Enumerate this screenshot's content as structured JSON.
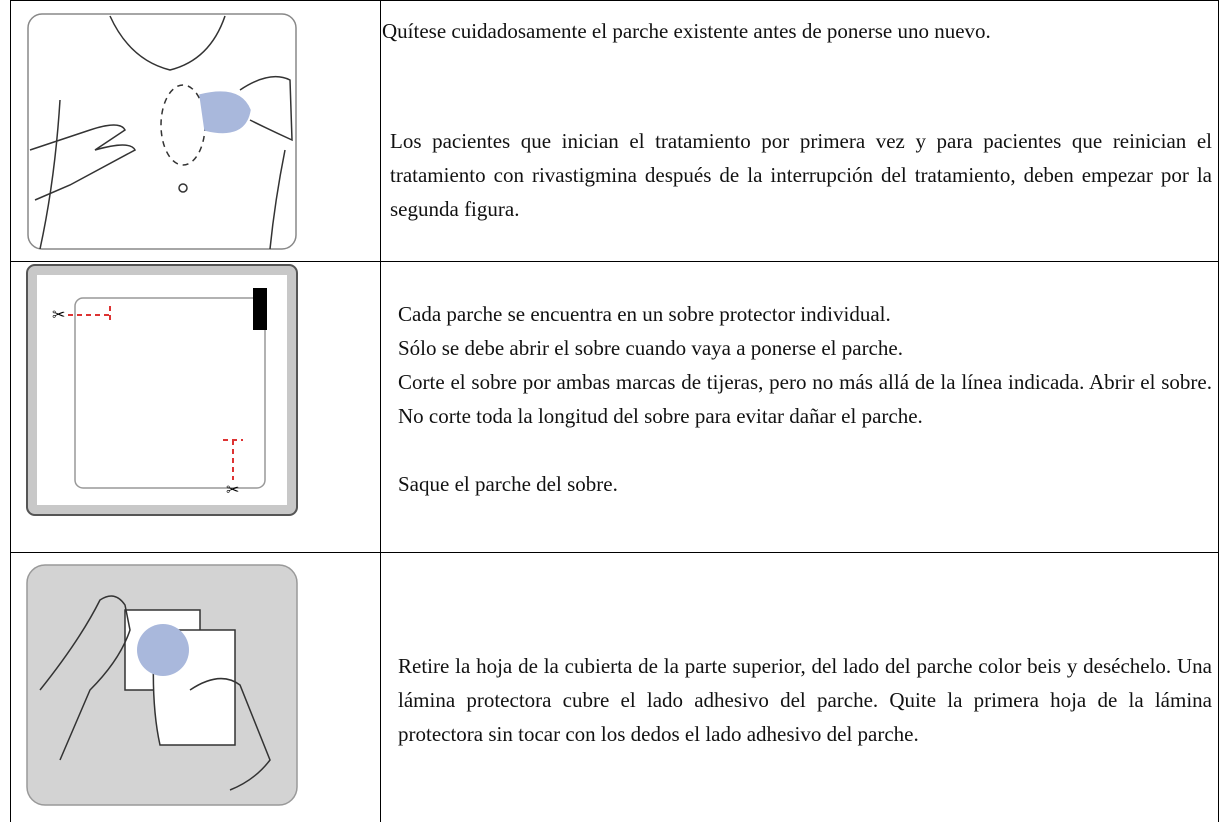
{
  "table": {
    "rows": [
      {
        "paragraphs": [
          "Quítese cuidadosamente el parche existente antes de ponerse uno nuevo.",
          "Los pacientes que inician el tratamiento por primera vez y para pacientes que reinician el tratamiento con rivastigmina después de la interrupción del tratamiento, deben empezar por la segunda figura."
        ]
      },
      {
        "paragraphs": [
          "Cada parche se encuentra en un sobre protector individual.",
          "Sólo se debe abrir el sobre cuando vaya a ponerse el parche.",
          "Corte el sobre por ambas marcas de tijeras, pero no más allá de la línea indicada. Abrir el sobre. No corte toda la longitud del sobre para evitar dañar el parche.",
          "Saque el parche del sobre."
        ]
      },
      {
        "paragraphs": [
          "Retire la hoja de la cubierta de la parte superior, del lado del parche color beis y deséchelo. Una lámina protectora cubre el lado adhesivo del parche. Quite la primera hoja de la lámina protectora sin tocar con los dedos el lado adhesivo del parche."
        ]
      }
    ]
  }
}
